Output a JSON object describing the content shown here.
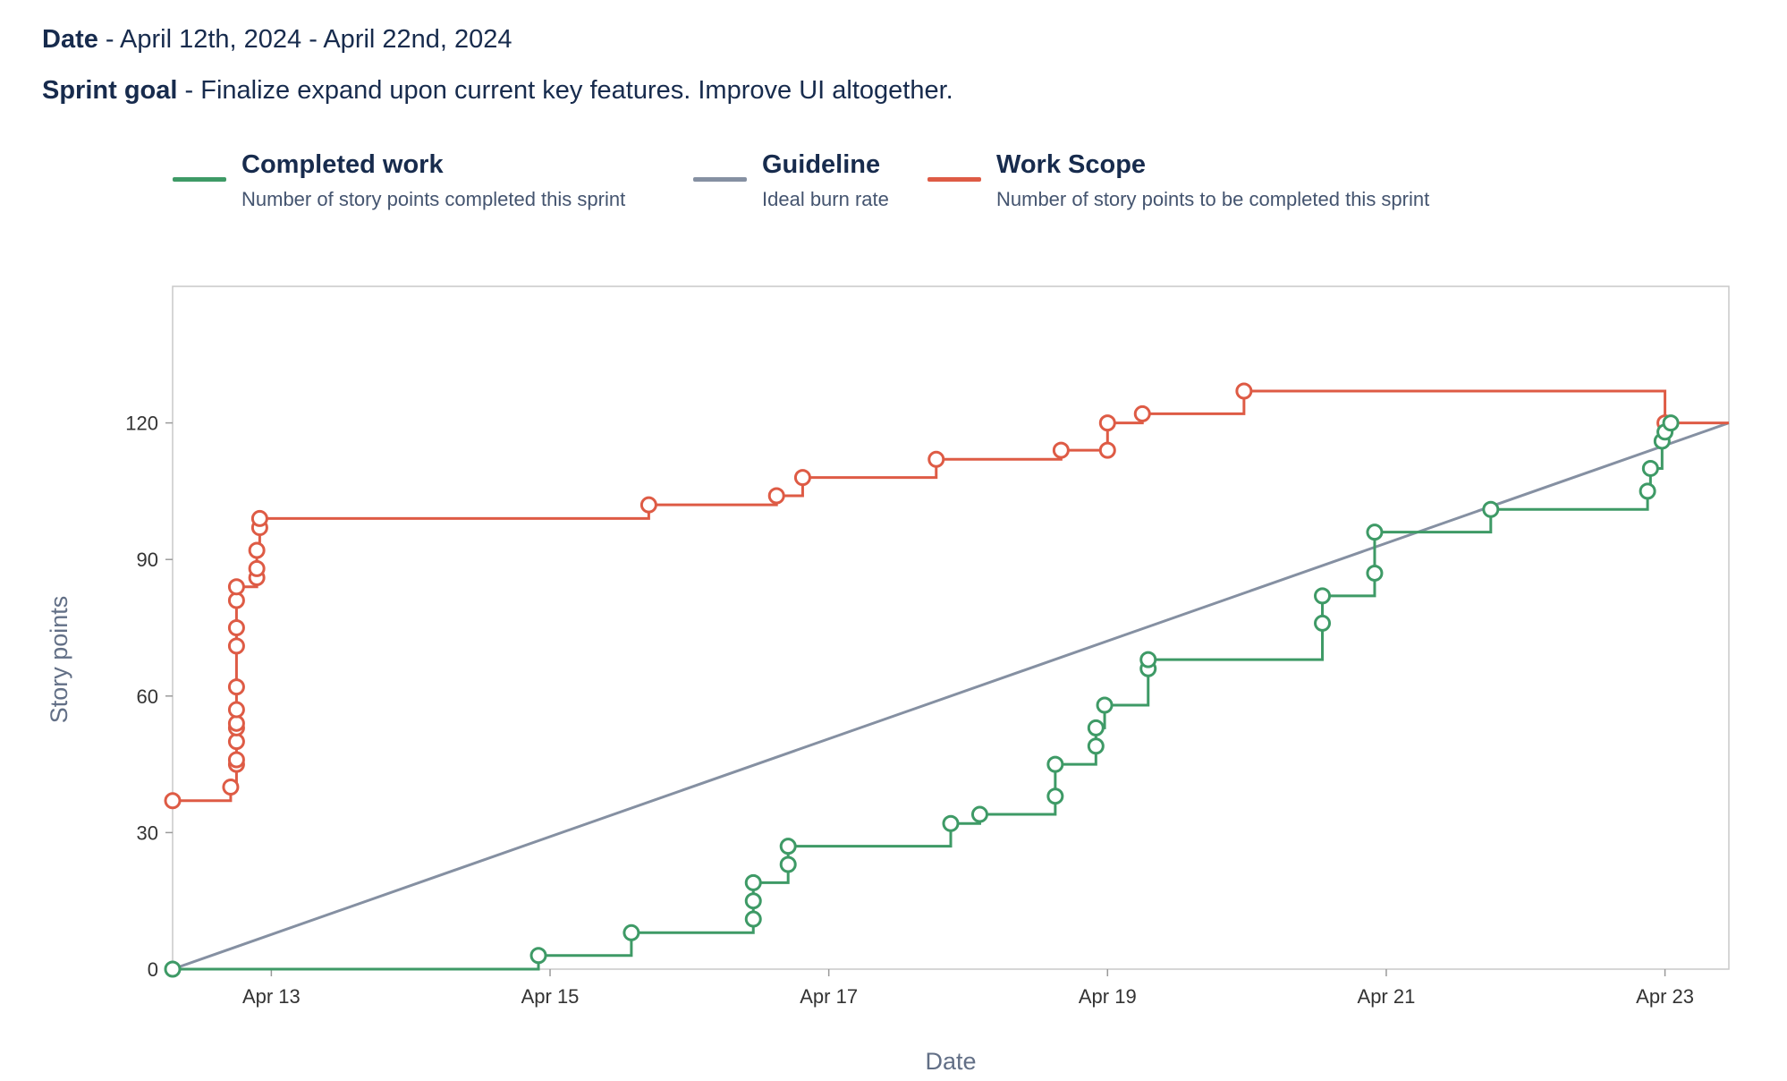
{
  "header": {
    "date_label": "Date",
    "date_text": " - April 12th, 2024 - April 22nd, 2024",
    "goal_label": "Sprint goal",
    "goal_text": " - Finalize expand upon current key features. Improve UI altogether."
  },
  "legend": [
    {
      "title": "Completed work",
      "description": "Number of story points completed this sprint",
      "color": "#3e9a66"
    },
    {
      "title": "Guideline",
      "description": "Ideal burn rate",
      "color": "#8590a2"
    },
    {
      "title": "Work Scope",
      "description": "Number of story points to be completed this sprint",
      "color": "#de5b45"
    }
  ],
  "chart_data": {
    "type": "line",
    "title": "",
    "xlabel": "Date",
    "ylabel": "Story points",
    "x_ticks": [
      "Apr 13",
      "Apr 15",
      "Apr 17",
      "Apr 19",
      "Apr 21",
      "Apr 23"
    ],
    "y_ticks": [
      0,
      30,
      60,
      90,
      120
    ],
    "xlim": [
      "2024-04-12 07:00",
      "2024-04-23 11:00"
    ],
    "ylim": [
      0,
      150
    ],
    "step": true,
    "series": [
      {
        "name": "Work Scope",
        "color": "#de5b45",
        "points": [
          [
            "2024-04-12 07:00",
            37
          ],
          [
            "2024-04-12 17:00",
            40
          ],
          [
            "2024-04-12 18:00",
            45
          ],
          [
            "2024-04-12 18:00",
            46
          ],
          [
            "2024-04-12 18:00",
            50
          ],
          [
            "2024-04-12 18:00",
            53
          ],
          [
            "2024-04-12 18:00",
            54
          ],
          [
            "2024-04-12 18:00",
            57
          ],
          [
            "2024-04-12 18:00",
            62
          ],
          [
            "2024-04-12 18:00",
            71
          ],
          [
            "2024-04-12 18:00",
            75
          ],
          [
            "2024-04-12 18:00",
            81
          ],
          [
            "2024-04-12 18:00",
            84
          ],
          [
            "2024-04-12 21:30",
            86
          ],
          [
            "2024-04-12 21:30",
            88
          ],
          [
            "2024-04-12 21:30",
            92
          ],
          [
            "2024-04-12 22:00",
            97
          ],
          [
            "2024-04-12 22:00",
            99
          ],
          [
            "2024-04-15 17:00",
            102
          ],
          [
            "2024-04-16 15:00",
            104
          ],
          [
            "2024-04-16 19:30",
            108
          ],
          [
            "2024-04-17 18:30",
            112
          ],
          [
            "2024-04-18 16:00",
            114
          ],
          [
            "2024-04-19 00:00",
            114
          ],
          [
            "2024-04-19 00:00",
            120
          ],
          [
            "2024-04-19 06:00",
            122
          ],
          [
            "2024-04-19 23:30",
            127
          ],
          [
            "2024-04-23 00:00",
            120
          ]
        ],
        "end": [
          "2024-04-23 11:00",
          120
        ]
      },
      {
        "name": "Guideline",
        "color": "#8590a2",
        "points": [
          [
            "2024-04-12 07:00",
            0
          ],
          [
            "2024-04-23 11:00",
            120
          ]
        ]
      },
      {
        "name": "Completed work",
        "color": "#3e9a66",
        "points": [
          [
            "2024-04-12 07:00",
            0
          ],
          [
            "2024-04-14 22:00",
            3
          ],
          [
            "2024-04-15 14:00",
            8
          ],
          [
            "2024-04-16 11:00",
            11
          ],
          [
            "2024-04-16 11:00",
            15
          ],
          [
            "2024-04-16 11:00",
            19
          ],
          [
            "2024-04-16 17:00",
            23
          ],
          [
            "2024-04-16 17:00",
            27
          ],
          [
            "2024-04-17 21:00",
            32
          ],
          [
            "2024-04-18 02:00",
            34
          ],
          [
            "2024-04-18 15:00",
            38
          ],
          [
            "2024-04-18 15:00",
            45
          ],
          [
            "2024-04-18 22:00",
            49
          ],
          [
            "2024-04-18 22:00",
            53
          ],
          [
            "2024-04-18 23:30",
            58
          ],
          [
            "2024-04-19 07:00",
            66
          ],
          [
            "2024-04-19 07:00",
            68
          ],
          [
            "2024-04-20 13:00",
            76
          ],
          [
            "2024-04-20 13:00",
            82
          ],
          [
            "2024-04-20 22:00",
            87
          ],
          [
            "2024-04-20 22:00",
            96
          ],
          [
            "2024-04-21 18:00",
            101
          ],
          [
            "2024-04-22 21:00",
            105
          ],
          [
            "2024-04-22 21:30",
            110
          ],
          [
            "2024-04-22 23:30",
            116
          ],
          [
            "2024-04-23 00:00",
            118
          ],
          [
            "2024-04-23 01:00",
            120
          ]
        ]
      }
    ]
  }
}
